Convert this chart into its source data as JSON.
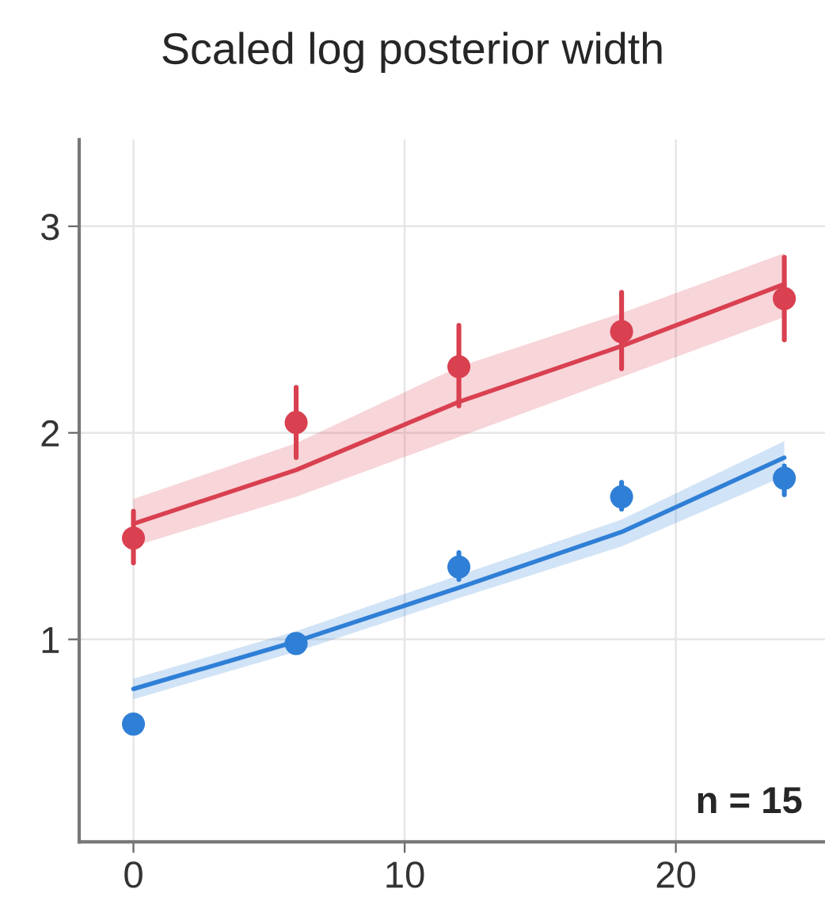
{
  "chart_data": {
    "type": "line",
    "title": "Scaled log posterior width",
    "annotations": [
      "n = 15"
    ],
    "xlim": [
      -2,
      25.5
    ],
    "ylim": [
      0.02,
      3.42
    ],
    "xticks": [
      0,
      10,
      20
    ],
    "yticks": [
      1,
      2,
      3
    ],
    "grid": true,
    "series": [
      {
        "color": "#d94050",
        "x": [
          0,
          6,
          12,
          18,
          24
        ],
        "values": [
          1.56,
          1.82,
          2.15,
          2.42,
          2.72
        ],
        "lower": [
          1.45,
          1.69,
          1.98,
          2.27,
          2.56
        ],
        "upper": [
          1.68,
          1.95,
          2.32,
          2.58,
          2.87
        ]
      },
      {
        "color": "#2f7fd6",
        "x": [
          0,
          6,
          12,
          18,
          24
        ],
        "values": [
          0.76,
          0.99,
          1.25,
          1.52,
          1.88
        ],
        "lower": [
          0.71,
          0.94,
          1.2,
          1.45,
          1.79
        ],
        "upper": [
          0.81,
          1.04,
          1.31,
          1.58,
          1.96
        ]
      },
      {
        "type": "scatter",
        "marker": "circle",
        "color": "#d94050",
        "x": [
          0,
          6,
          12,
          18,
          24
        ],
        "values": [
          1.49,
          2.05,
          2.32,
          2.49,
          2.65
        ],
        "errors": [
          [
            1.37,
            1.62
          ],
          [
            1.88,
            2.22
          ],
          [
            2.13,
            2.52
          ],
          [
            2.31,
            2.68
          ],
          [
            2.45,
            2.85
          ]
        ]
      },
      {
        "type": "scatter",
        "marker": "circle",
        "color": "#2f7fd6",
        "x": [
          0,
          6,
          12,
          18,
          24
        ],
        "values": [
          0.59,
          0.98,
          1.35,
          1.69,
          1.78
        ],
        "errors": [
          null,
          null,
          [
            1.29,
            1.42
          ],
          [
            1.63,
            1.76
          ],
          [
            1.7,
            1.84
          ]
        ]
      }
    ]
  }
}
